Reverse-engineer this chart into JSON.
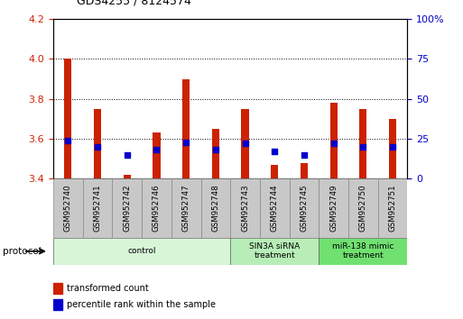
{
  "title": "GDS4255 / 8124574",
  "samples": [
    "GSM952740",
    "GSM952741",
    "GSM952742",
    "GSM952746",
    "GSM952747",
    "GSM952748",
    "GSM952743",
    "GSM952744",
    "GSM952745",
    "GSM952749",
    "GSM952750",
    "GSM952751"
  ],
  "transformed_count": [
    4.0,
    3.75,
    3.42,
    3.63,
    3.9,
    3.65,
    3.75,
    3.47,
    3.48,
    3.78,
    3.75,
    3.7
  ],
  "percentile_rank": [
    24,
    20,
    15,
    18,
    23,
    18,
    22,
    17,
    15,
    22,
    20,
    20
  ],
  "ylim_left": [
    3.4,
    4.2
  ],
  "ylim_right": [
    0,
    100
  ],
  "yticks_left": [
    3.4,
    3.6,
    3.8,
    4.0,
    4.2
  ],
  "yticks_right": [
    0,
    25,
    50,
    75,
    100
  ],
  "bar_color": "#cc2200",
  "dot_color": "#0000cc",
  "bar_bottom": 3.4,
  "bar_width": 0.25,
  "groups": [
    {
      "label": "control",
      "start": 0,
      "end": 5,
      "color": "#d8f5d8"
    },
    {
      "label": "SIN3A siRNA\ntreatment",
      "start": 6,
      "end": 8,
      "color": "#b8edb8"
    },
    {
      "label": "miR-138 mimic\ntreatment",
      "start": 9,
      "end": 11,
      "color": "#70e070"
    }
  ],
  "legend_items": [
    {
      "label": "transformed count",
      "color": "#cc2200"
    },
    {
      "label": "percentile rank within the sample",
      "color": "#0000cc"
    }
  ],
  "grid_color": "black",
  "tick_label_color_left": "#cc2200",
  "tick_label_color_right": "#0000cc",
  "bg_plot": "white",
  "bg_figure": "white",
  "protocol_label": "protocol",
  "dot_size": 25,
  "xlabel_box_color": "#c8c8c8"
}
